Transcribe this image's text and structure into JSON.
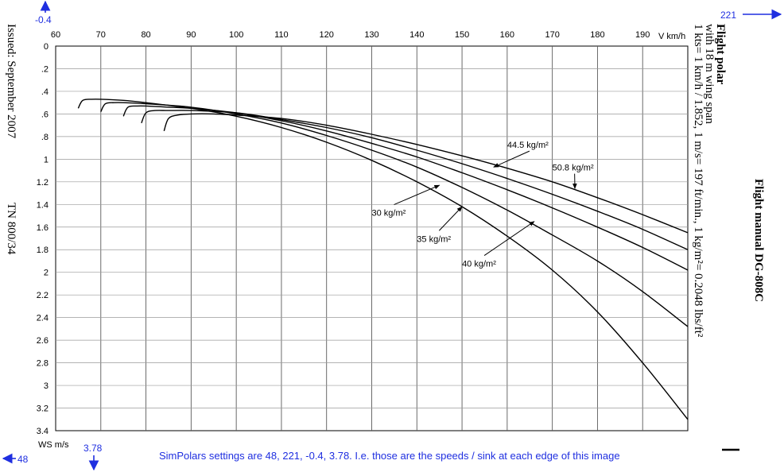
{
  "chart_data": {
    "type": "line",
    "x_axis": {
      "unit_label": "V  km/h",
      "range": [
        60,
        200
      ],
      "ticks": [
        "60",
        "70",
        "80",
        "90",
        "100",
        "110",
        "120",
        "130",
        "140",
        "150",
        "160",
        "170",
        "180",
        "190"
      ]
    },
    "y_axis": {
      "unit_label": "WS  m/s",
      "range": [
        0,
        3.4
      ],
      "inverted": true,
      "ticks": [
        "0",
        ".2",
        ".4",
        ".6",
        ".8",
        "1",
        "1.2",
        "1.4",
        "1.6",
        "1.8",
        "2",
        "2.2",
        "2.4",
        "2.6",
        "2.8",
        "3",
        "3.2",
        "3.4"
      ]
    },
    "grid": true,
    "series": [
      {
        "name": "30 kg/m²",
        "label_pos": [
          130,
          1.5
        ],
        "arrow_to": [
          145,
          1.23
        ],
        "points": [
          [
            65,
            0.55
          ],
          [
            66,
            0.48
          ],
          [
            68,
            0.47
          ],
          [
            70,
            0.47
          ],
          [
            75,
            0.48
          ],
          [
            80,
            0.5
          ],
          [
            90,
            0.55
          ],
          [
            100,
            0.62
          ],
          [
            110,
            0.72
          ],
          [
            120,
            0.85
          ],
          [
            130,
            1.01
          ],
          [
            140,
            1.2
          ],
          [
            150,
            1.42
          ],
          [
            160,
            1.68
          ],
          [
            170,
            1.98
          ],
          [
            180,
            2.35
          ],
          [
            190,
            2.8
          ],
          [
            200,
            3.3
          ]
        ]
      },
      {
        "name": "35 kg/m²",
        "label_pos": [
          140,
          1.73
        ],
        "arrow_to": [
          150,
          1.42
        ],
        "points": [
          [
            70,
            0.58
          ],
          [
            71,
            0.51
          ],
          [
            73,
            0.5
          ],
          [
            75,
            0.5
          ],
          [
            80,
            0.51
          ],
          [
            90,
            0.54
          ],
          [
            100,
            0.6
          ],
          [
            110,
            0.68
          ],
          [
            120,
            0.79
          ],
          [
            130,
            0.92
          ],
          [
            140,
            1.07
          ],
          [
            150,
            1.25
          ],
          [
            160,
            1.45
          ],
          [
            170,
            1.67
          ],
          [
            180,
            1.9
          ],
          [
            190,
            2.17
          ],
          [
            200,
            2.48
          ]
        ]
      },
      {
        "name": "40 kg/m²",
        "label_pos": [
          150,
          1.95
        ],
        "arrow_to": [
          166,
          1.55
        ],
        "points": [
          [
            75,
            0.62
          ],
          [
            76,
            0.54
          ],
          [
            78,
            0.53
          ],
          [
            80,
            0.53
          ],
          [
            85,
            0.54
          ],
          [
            90,
            0.55
          ],
          [
            100,
            0.59
          ],
          [
            110,
            0.66
          ],
          [
            120,
            0.75
          ],
          [
            130,
            0.86
          ],
          [
            140,
            0.98
          ],
          [
            150,
            1.12
          ],
          [
            160,
            1.27
          ],
          [
            170,
            1.43
          ],
          [
            180,
            1.6
          ],
          [
            190,
            1.78
          ],
          [
            200,
            1.98
          ]
        ]
      },
      {
        "name": "44.5 kg/m²",
        "label_pos": [
          160,
          0.9
        ],
        "arrow_to": [
          157,
          1.07
        ],
        "points": [
          [
            79,
            0.68
          ],
          [
            80,
            0.59
          ],
          [
            82,
            0.57
          ],
          [
            85,
            0.57
          ],
          [
            90,
            0.57
          ],
          [
            100,
            0.59
          ],
          [
            110,
            0.65
          ],
          [
            120,
            0.72
          ],
          [
            130,
            0.81
          ],
          [
            140,
            0.92
          ],
          [
            150,
            1.04
          ],
          [
            160,
            1.17
          ],
          [
            170,
            1.31
          ],
          [
            180,
            1.46
          ],
          [
            190,
            1.62
          ],
          [
            200,
            1.8
          ]
        ]
      },
      {
        "name": "50.8 kg/m²",
        "label_pos": [
          170,
          1.1
        ],
        "arrow_to": [
          175,
          1.26
        ],
        "points": [
          [
            84,
            0.75
          ],
          [
            85,
            0.64
          ],
          [
            87,
            0.61
          ],
          [
            90,
            0.6
          ],
          [
            95,
            0.6
          ],
          [
            100,
            0.61
          ],
          [
            110,
            0.64
          ],
          [
            120,
            0.7
          ],
          [
            130,
            0.78
          ],
          [
            140,
            0.87
          ],
          [
            150,
            0.97
          ],
          [
            160,
            1.08
          ],
          [
            170,
            1.2
          ],
          [
            180,
            1.34
          ],
          [
            190,
            1.49
          ],
          [
            200,
            1.65
          ]
        ]
      }
    ]
  },
  "left_margin": {
    "issued": "Issued: September 2007",
    "doc_number": "TN 800/34"
  },
  "right_margin": {
    "title": "Flight polar",
    "subtitle": "with 18 m wing span",
    "conversion": "1 kts= 1 km/h / 1.852, 1 m/s= 197 ft/min., 1 kg/m²= 0.2048 lbs/ft²",
    "manual": "Flight manual DG-808C"
  },
  "annotations": {
    "top_left_value": "-0.4",
    "top_right_value": "221",
    "bottom_left_value": "48",
    "bottom_value": "3.78",
    "simpolars_note": "SimPolars settings are 48, 221, -0.4, 3.78. I.e. those are the speeds / sink at each edge of this image"
  }
}
